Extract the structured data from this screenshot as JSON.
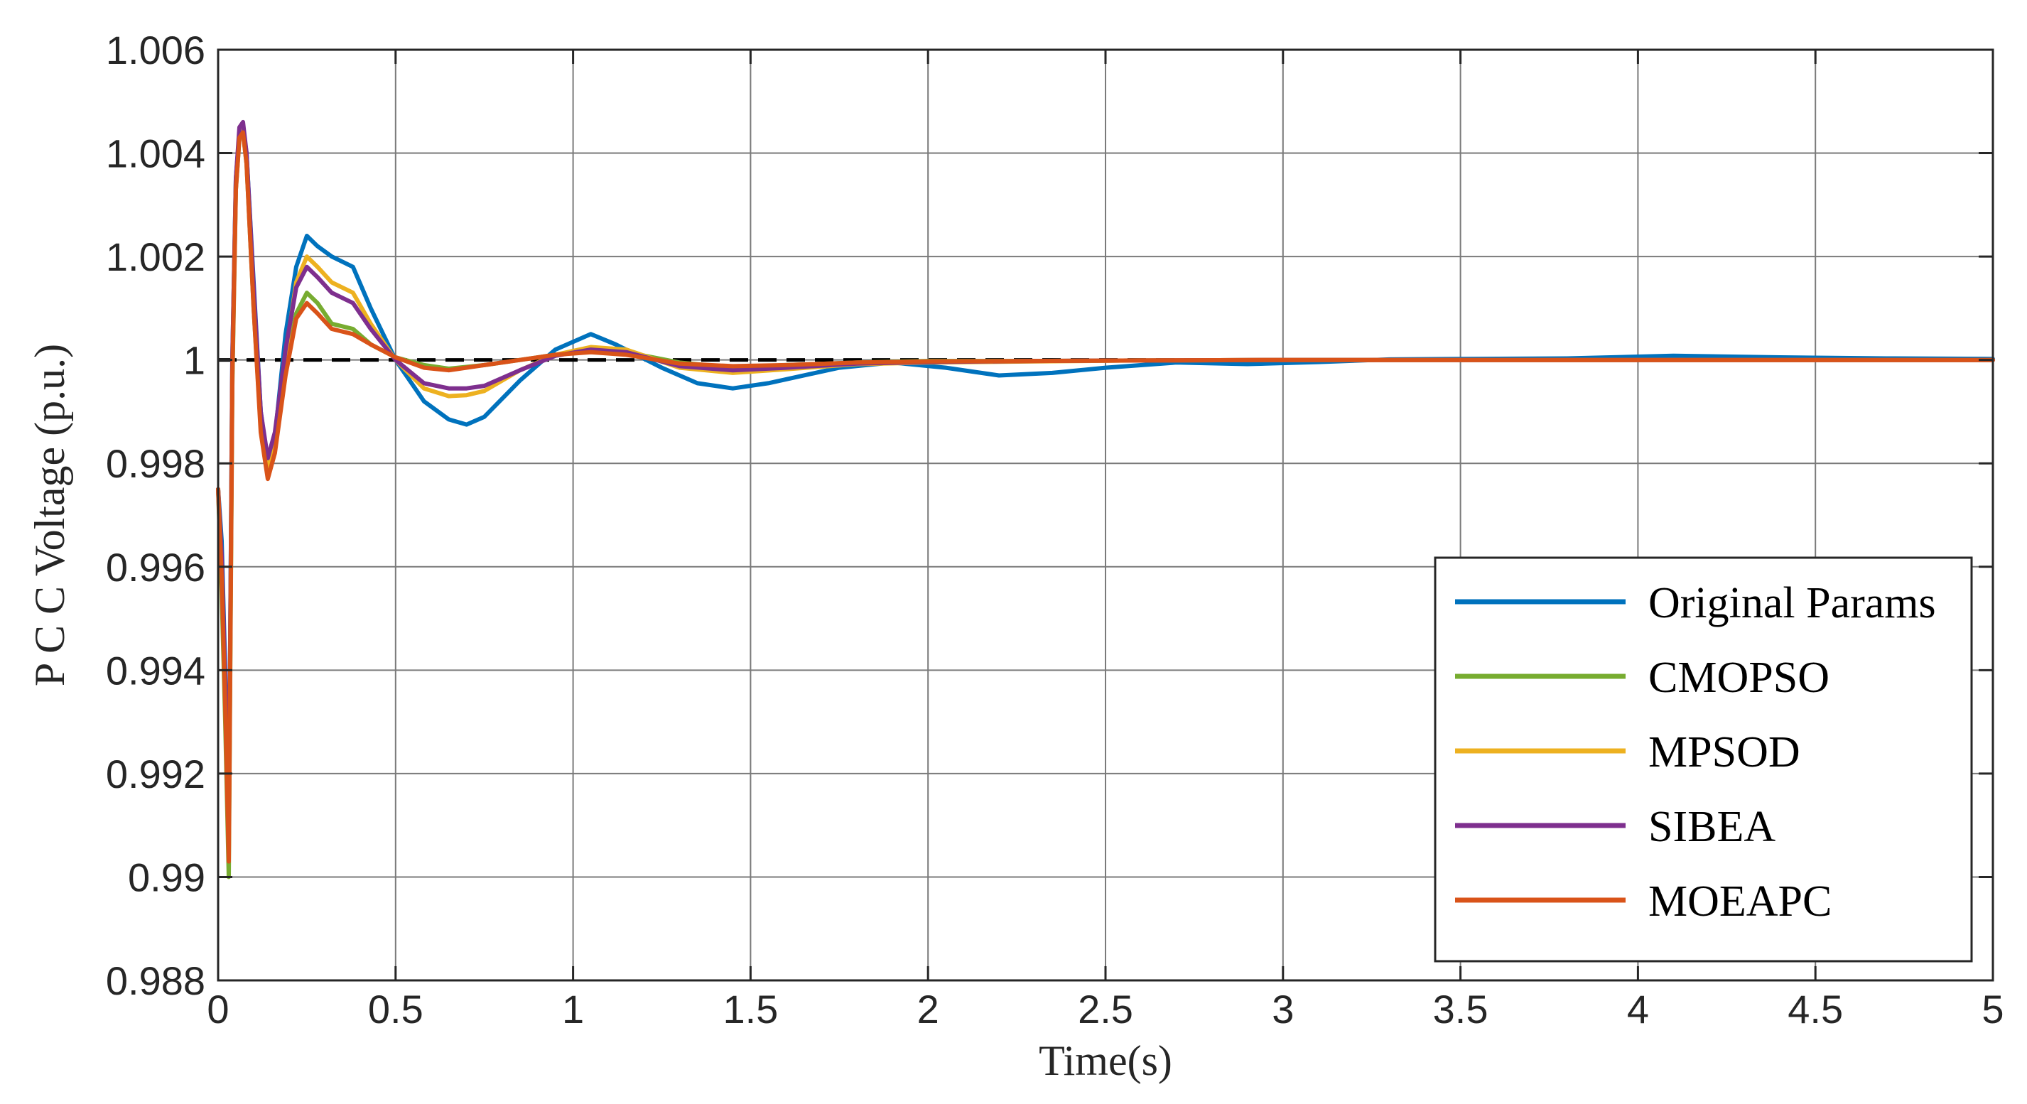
{
  "chart_data": {
    "type": "line",
    "xlabel": "Time(s)",
    "ylabel": "P C C  Voltage (p.u.)",
    "xlim": [
      0,
      5
    ],
    "ylim": [
      0.988,
      1.006
    ],
    "grid": true,
    "legend_position": "bottom-right",
    "x_ticks": [
      {
        "value": 0,
        "label": "0"
      },
      {
        "value": 0.5,
        "label": "0.5"
      },
      {
        "value": 1,
        "label": "1"
      },
      {
        "value": 1.5,
        "label": "1.5"
      },
      {
        "value": 2,
        "label": "2"
      },
      {
        "value": 2.5,
        "label": "2.5"
      },
      {
        "value": 3,
        "label": "3"
      },
      {
        "value": 3.5,
        "label": "3.5"
      },
      {
        "value": 4,
        "label": "4"
      },
      {
        "value": 4.5,
        "label": "4.5"
      },
      {
        "value": 5,
        "label": "5"
      }
    ],
    "y_ticks": [
      {
        "value": 0.988,
        "label": "0.988"
      },
      {
        "value": 0.99,
        "label": "0.99"
      },
      {
        "value": 0.992,
        "label": "0.992"
      },
      {
        "value": 0.994,
        "label": "0.994"
      },
      {
        "value": 0.996,
        "label": "0.996"
      },
      {
        "value": 0.998,
        "label": "0.998"
      },
      {
        "value": 1.0,
        "label": "1"
      },
      {
        "value": 1.002,
        "label": "1.002"
      },
      {
        "value": 1.004,
        "label": "1.004"
      },
      {
        "value": 1.006,
        "label": "1.006"
      }
    ],
    "reference_line": {
      "y": 1.0,
      "color": "#000000",
      "style": "dashed"
    },
    "series": [
      {
        "name": "Original Params",
        "color": "#0072BD",
        "points": [
          [
            0,
            0.9975
          ],
          [
            0.01,
            0.9965
          ],
          [
            0.02,
            0.994
          ],
          [
            0.03,
            0.991
          ],
          [
            0.04,
            1.0
          ],
          [
            0.05,
            1.0035
          ],
          [
            0.06,
            1.0044
          ],
          [
            0.07,
            1.0045
          ],
          [
            0.08,
            1.004
          ],
          [
            0.1,
            1.0015
          ],
          [
            0.12,
            0.999
          ],
          [
            0.14,
            0.998
          ],
          [
            0.16,
            0.9985
          ],
          [
            0.19,
            1.0005
          ],
          [
            0.22,
            1.0018
          ],
          [
            0.25,
            1.0024
          ],
          [
            0.28,
            1.0022
          ],
          [
            0.32,
            1.002
          ],
          [
            0.38,
            1.0018
          ],
          [
            0.43,
            1.001
          ],
          [
            0.5,
            1.0
          ],
          [
            0.58,
            0.9992
          ],
          [
            0.65,
            0.99885
          ],
          [
            0.7,
            0.99875
          ],
          [
            0.75,
            0.9989
          ],
          [
            0.85,
            0.9996
          ],
          [
            0.95,
            1.0002
          ],
          [
            1.05,
            1.0005
          ],
          [
            1.12,
            1.0003
          ],
          [
            1.25,
            0.99985
          ],
          [
            1.35,
            0.99955
          ],
          [
            1.45,
            0.99945
          ],
          [
            1.55,
            0.99955
          ],
          [
            1.75,
            0.99985
          ],
          [
            1.9,
            0.99995
          ],
          [
            2.05,
            0.99985
          ],
          [
            2.2,
            0.9997
          ],
          [
            2.35,
            0.99975
          ],
          [
            2.5,
            0.99985
          ],
          [
            2.7,
            0.99995
          ],
          [
            2.9,
            0.99992
          ],
          [
            3.1,
            0.99996
          ],
          [
            3.3,
            1.00001
          ],
          [
            3.5,
            1.00002
          ],
          [
            3.8,
            1.00003
          ],
          [
            4.1,
            1.00008
          ],
          [
            4.4,
            1.00005
          ],
          [
            4.7,
            1.00003
          ],
          [
            5.0,
            1.00002
          ]
        ]
      },
      {
        "name": "CMOPSO",
        "color": "#77AC30",
        "points": [
          [
            0,
            0.9975
          ],
          [
            0.01,
            0.9955
          ],
          [
            0.02,
            0.993
          ],
          [
            0.03,
            0.99
          ],
          [
            0.04,
            0.9995
          ],
          [
            0.05,
            1.0033
          ],
          [
            0.06,
            1.0043
          ],
          [
            0.07,
            1.0044
          ],
          [
            0.08,
            1.0038
          ],
          [
            0.1,
            1.001
          ],
          [
            0.12,
            0.9987
          ],
          [
            0.14,
            0.9979
          ],
          [
            0.16,
            0.9984
          ],
          [
            0.19,
            0.9998
          ],
          [
            0.22,
            1.0009
          ],
          [
            0.25,
            1.0013
          ],
          [
            0.28,
            1.0011
          ],
          [
            0.32,
            1.0007
          ],
          [
            0.38,
            1.0006
          ],
          [
            0.43,
            1.0003
          ],
          [
            0.5,
            1.00005
          ],
          [
            0.58,
            0.9999
          ],
          [
            0.65,
            0.99983
          ],
          [
            0.75,
            0.9999
          ],
          [
            0.85,
            1.0
          ],
          [
            0.95,
            1.0001
          ],
          [
            1.05,
            1.0002
          ],
          [
            1.15,
            1.00015
          ],
          [
            1.3,
            0.99995
          ],
          [
            1.45,
            0.99985
          ],
          [
            1.6,
            0.9999
          ],
          [
            1.8,
            0.99995
          ],
          [
            2.0,
            0.99998
          ],
          [
            2.3,
            0.99998
          ],
          [
            2.6,
            0.99999
          ],
          [
            3.0,
            1.0
          ],
          [
            3.5,
            1.0
          ],
          [
            4.0,
            1.0
          ],
          [
            4.5,
            1.0
          ],
          [
            5.0,
            1.0
          ]
        ]
      },
      {
        "name": "MPSOD",
        "color": "#EDB120",
        "points": [
          [
            0,
            0.9975
          ],
          [
            0.01,
            0.996
          ],
          [
            0.02,
            0.9935
          ],
          [
            0.03,
            0.9905
          ],
          [
            0.04,
            0.9998
          ],
          [
            0.05,
            1.0034
          ],
          [
            0.06,
            1.0044
          ],
          [
            0.07,
            1.0045
          ],
          [
            0.08,
            1.0039
          ],
          [
            0.1,
            1.0013
          ],
          [
            0.12,
            0.9988
          ],
          [
            0.14,
            0.9979
          ],
          [
            0.16,
            0.9984
          ],
          [
            0.19,
            1.0001
          ],
          [
            0.22,
            1.0015
          ],
          [
            0.25,
            1.002
          ],
          [
            0.28,
            1.0018
          ],
          [
            0.32,
            1.0015
          ],
          [
            0.38,
            1.0013
          ],
          [
            0.43,
            1.0007
          ],
          [
            0.5,
            1.0
          ],
          [
            0.58,
            0.99945
          ],
          [
            0.65,
            0.9993
          ],
          [
            0.7,
            0.99932
          ],
          [
            0.75,
            0.9994
          ],
          [
            0.85,
            0.9998
          ],
          [
            0.95,
            1.0001
          ],
          [
            1.05,
            1.00025
          ],
          [
            1.15,
            1.0002
          ],
          [
            1.3,
            0.99985
          ],
          [
            1.45,
            0.99975
          ],
          [
            1.6,
            0.99982
          ],
          [
            1.8,
            0.99992
          ],
          [
            2.0,
            0.99995
          ],
          [
            2.3,
            0.99997
          ],
          [
            2.6,
            0.99999
          ],
          [
            3.0,
            1.0
          ],
          [
            3.5,
            1.0
          ],
          [
            4.0,
            1.0
          ],
          [
            4.5,
            1.0
          ],
          [
            5.0,
            1.0
          ]
        ]
      },
      {
        "name": "SIBEA",
        "color": "#7E2F8E",
        "points": [
          [
            0,
            0.9975
          ],
          [
            0.01,
            0.9962
          ],
          [
            0.02,
            0.9938
          ],
          [
            0.03,
            0.9908
          ],
          [
            0.04,
            1.0
          ],
          [
            0.05,
            1.0035
          ],
          [
            0.06,
            1.0045
          ],
          [
            0.07,
            1.0046
          ],
          [
            0.08,
            1.004
          ],
          [
            0.1,
            1.0014
          ],
          [
            0.12,
            0.999
          ],
          [
            0.14,
            0.9981
          ],
          [
            0.16,
            0.9986
          ],
          [
            0.19,
            1.0002
          ],
          [
            0.22,
            1.0014
          ],
          [
            0.25,
            1.0018
          ],
          [
            0.28,
            1.0016
          ],
          [
            0.32,
            1.0013
          ],
          [
            0.38,
            1.0011
          ],
          [
            0.43,
            1.0006
          ],
          [
            0.5,
            1.0
          ],
          [
            0.58,
            0.99955
          ],
          [
            0.65,
            0.99945
          ],
          [
            0.7,
            0.99945
          ],
          [
            0.75,
            0.9995
          ],
          [
            0.85,
            0.9998
          ],
          [
            0.95,
            1.00008
          ],
          [
            1.05,
            1.0002
          ],
          [
            1.15,
            1.00015
          ],
          [
            1.3,
            0.99988
          ],
          [
            1.45,
            0.9998
          ],
          [
            1.6,
            0.99985
          ],
          [
            1.8,
            0.99993
          ],
          [
            2.0,
            0.99996
          ],
          [
            2.3,
            0.99998
          ],
          [
            2.6,
            0.99999
          ],
          [
            3.0,
            1.0
          ],
          [
            3.5,
            1.0
          ],
          [
            4.0,
            1.0
          ],
          [
            4.5,
            1.0
          ],
          [
            5.0,
            1.0
          ]
        ]
      },
      {
        "name": "MOEAPC",
        "color": "#D95319",
        "points": [
          [
            0,
            0.9975
          ],
          [
            0.01,
            0.9958
          ],
          [
            0.02,
            0.9933
          ],
          [
            0.03,
            0.9903
          ],
          [
            0.04,
            0.9997
          ],
          [
            0.05,
            1.0033
          ],
          [
            0.06,
            1.0043
          ],
          [
            0.07,
            1.0044
          ],
          [
            0.08,
            1.0038
          ],
          [
            0.1,
            1.001
          ],
          [
            0.12,
            0.9986
          ],
          [
            0.14,
            0.9977
          ],
          [
            0.16,
            0.9982
          ],
          [
            0.19,
            0.9997
          ],
          [
            0.22,
            1.0008
          ],
          [
            0.25,
            1.0011
          ],
          [
            0.28,
            1.0009
          ],
          [
            0.32,
            1.0006
          ],
          [
            0.38,
            1.0005
          ],
          [
            0.43,
            1.0003
          ],
          [
            0.5,
            1.00005
          ],
          [
            0.58,
            0.99985
          ],
          [
            0.65,
            0.9998
          ],
          [
            0.75,
            0.9999
          ],
          [
            0.85,
            1.0
          ],
          [
            0.95,
            1.0001
          ],
          [
            1.05,
            1.00015
          ],
          [
            1.15,
            1.0001
          ],
          [
            1.3,
            0.99993
          ],
          [
            1.45,
            0.99988
          ],
          [
            1.6,
            0.9999
          ],
          [
            1.8,
            0.99995
          ],
          [
            2.0,
            0.99997
          ],
          [
            2.3,
            0.99998
          ],
          [
            2.6,
            0.99999
          ],
          [
            3.0,
            1.0
          ],
          [
            3.5,
            1.0
          ],
          [
            4.0,
            1.0
          ],
          [
            4.5,
            1.0
          ],
          [
            5.0,
            1.0
          ]
        ]
      }
    ]
  }
}
